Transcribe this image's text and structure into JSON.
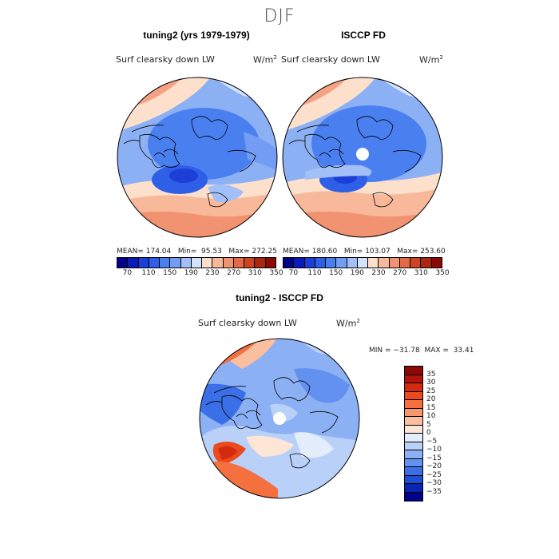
{
  "figure": {
    "season": "DJF"
  },
  "panels": {
    "model": {
      "title": "tuning2 (yrs 1979-1979)",
      "variable": "Surf clearsky down LW",
      "units": "W/m",
      "units_sup": "2",
      "stats": "MEAN= 174.04   Min=  95.53   Max= 272.25"
    },
    "obs": {
      "title": "ISCCP FD",
      "variable": "Surf clearsky down LW",
      "units": "W/m",
      "units_sup": "2",
      "stats": "MEAN= 180.60   Min= 103.07   Max= 253.60"
    },
    "diff": {
      "title": "tuning2 - ISCCP FD",
      "variable": "Surf clearsky down LW",
      "units": "W/m",
      "units_sup": "2",
      "stats": "MIN = −31.78  MAX =  33.41"
    }
  },
  "colorbars": {
    "absolute": {
      "tick_labels": [
        "70",
        "110",
        "150",
        "190",
        "230",
        "270",
        "310",
        "350"
      ],
      "colors": [
        "#00008b",
        "#0a1ab4",
        "#1c3fd8",
        "#2e5fe6",
        "#4a7ff0",
        "#739df4",
        "#a3bff7",
        "#d4e3fb",
        "#fde0cc",
        "#f8b89a",
        "#f19270",
        "#e36a48",
        "#cc4522",
        "#ad2710",
        "#8b0a05"
      ]
    },
    "difference": {
      "tick_labels": [
        "35",
        "30",
        "25",
        "20",
        "15",
        "10",
        "5",
        "0",
        "−5",
        "−10",
        "−15",
        "−20",
        "−25",
        "−30",
        "−35"
      ],
      "colors": [
        "#8b0a05",
        "#b31408",
        "#d42a10",
        "#eb4a1e",
        "#f4703f",
        "#f6986c",
        "#f9bf9e",
        "#fde6d5",
        "#e3edfc",
        "#b9d0f8",
        "#8cb0f4",
        "#6291f0",
        "#3b6fe8",
        "#1c4ed8",
        "#0a26b0",
        "#00008b"
      ]
    }
  }
}
